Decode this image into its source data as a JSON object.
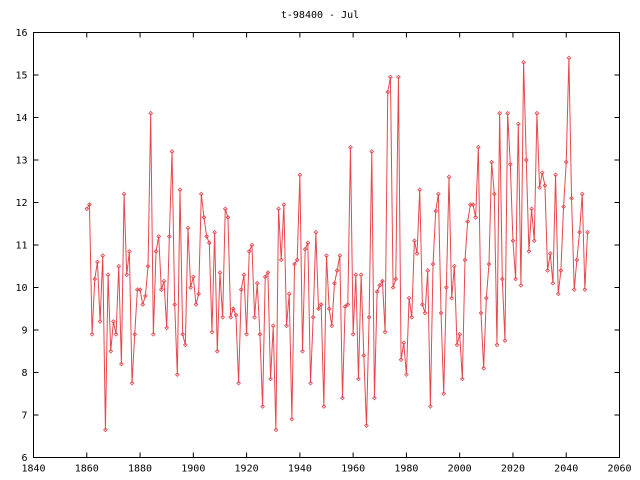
{
  "chart_data": {
    "type": "line",
    "title": "t-98400 - Jul",
    "xlabel": "",
    "ylabel": "",
    "xlim": [
      1840,
      2060
    ],
    "ylim": [
      6,
      16
    ],
    "xticks": [
      "1840",
      "1860",
      "1880",
      "1900",
      "1920",
      "1940",
      "1960",
      "1980",
      "2000",
      "2020",
      "2040",
      "2060"
    ],
    "yticks": [
      "6",
      "7",
      "8",
      "9",
      "10",
      "11",
      "12",
      "13",
      "14",
      "15",
      "16"
    ],
    "grid": false,
    "legend": "none",
    "colors": {
      "series": "#e8474f",
      "axis": "#000000",
      "background": "#ffffff"
    },
    "series": [
      {
        "x_start": 1860,
        "x_step": 1,
        "values": [
          11.85,
          11.95,
          8.9,
          10.2,
          10.6,
          9.2,
          10.75,
          6.65,
          10.3,
          8.5,
          9.2,
          8.9,
          10.5,
          8.2,
          12.2,
          10.3,
          10.85,
          7.75,
          8.9,
          9.95,
          9.95,
          9.6,
          9.8,
          10.5,
          14.1,
          8.9,
          10.85,
          11.2,
          9.95,
          10.15,
          9.05,
          11.2,
          13.2,
          9.6,
          7.95,
          12.3,
          8.9,
          8.65,
          11.4,
          10.0,
          10.25,
          9.6,
          9.85,
          12.2,
          11.65,
          11.2,
          11.05,
          8.95,
          11.3,
          8.5,
          10.35,
          9.3,
          11.85,
          11.65,
          9.3,
          9.5,
          9.35,
          7.75,
          9.95,
          10.3,
          8.9,
          10.85,
          11.0,
          9.3,
          10.1,
          8.9,
          7.2,
          10.25,
          10.35,
          7.85,
          9.1,
          6.65,
          11.85,
          10.65,
          11.95,
          9.1,
          9.85,
          6.9,
          10.55,
          10.65,
          12.65,
          8.5,
          10.9,
          11.05,
          7.75,
          9.3,
          11.3,
          9.5,
          9.6,
          7.2,
          10.75,
          9.5,
          9.1,
          10.1,
          10.4,
          10.75,
          7.4,
          9.55,
          9.6,
          13.3,
          8.9,
          10.3,
          7.85,
          10.3,
          8.4,
          6.75,
          9.3,
          13.2,
          7.4,
          9.9,
          10.05,
          10.15,
          8.95,
          14.6,
          14.95,
          10.0,
          10.2,
          14.95,
          8.3,
          8.7,
          7.95,
          9.75,
          9.3,
          11.1,
          10.8,
          12.3,
          9.6,
          9.4,
          10.4,
          7.2,
          10.55,
          11.8,
          12.2,
          9.4,
          7.5,
          10.0,
          12.6,
          9.75,
          10.5,
          8.65,
          8.9,
          7.85,
          10.65,
          11.55,
          11.95,
          11.95,
          11.65,
          13.3,
          9.4,
          8.1,
          9.75,
          10.55,
          12.95,
          12.2,
          8.65,
          14.1,
          10.2,
          8.75,
          14.1,
          12.9,
          11.1,
          10.2,
          13.85,
          10.05,
          15.3,
          13.0,
          10.85,
          11.85,
          11.1,
          14.1,
          12.35,
          12.7,
          12.4,
          10.4,
          10.8,
          10.1,
          12.65,
          9.85,
          10.4,
          11.9,
          12.95,
          15.4,
          12.1,
          9.95,
          10.65,
          11.3,
          12.2,
          9.95,
          11.3
        ]
      }
    ]
  }
}
